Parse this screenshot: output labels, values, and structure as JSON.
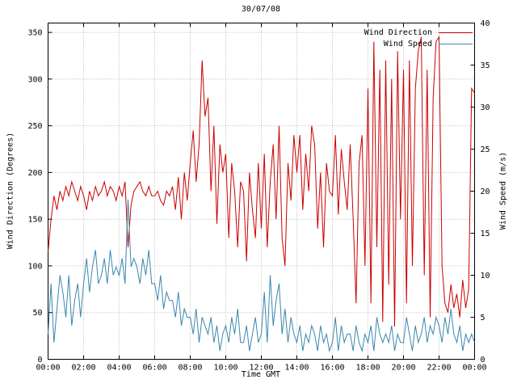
{
  "chart_data": {
    "type": "line",
    "title": "30/07/08",
    "xlabel": "Time GMT",
    "ylabel_left": "Wind Direction (Degrees)",
    "ylabel_right": "Wind Speed (m/s)",
    "grid": true,
    "legend_position": "top-right",
    "x_tick_labels": [
      "00:00",
      "02:00",
      "04:00",
      "06:00",
      "08:00",
      "10:00",
      "12:00",
      "14:00",
      "16:00",
      "18:00",
      "20:00",
      "22:00",
      "00:00"
    ],
    "y_left_ticks": [
      0,
      50,
      100,
      150,
      200,
      250,
      300,
      350
    ],
    "y_right_ticks": [
      0,
      5,
      10,
      15,
      20,
      25,
      30,
      35,
      40
    ],
    "y_left_range": [
      0,
      360
    ],
    "y_right_range": [
      0,
      40
    ],
    "x_range_minutes": [
      0,
      1440
    ],
    "colors": {
      "wind_direction": "#cc0000",
      "wind_speed": "#3a87ad",
      "grid": "#b4b4b4",
      "border": "#000000"
    },
    "series": [
      {
        "name": "Wind Direction",
        "axis": "left",
        "color_key": "wind_direction",
        "step_minutes": 10,
        "values": [
          115,
          150,
          175,
          160,
          180,
          170,
          185,
          175,
          190,
          180,
          170,
          185,
          175,
          160,
          180,
          170,
          185,
          175,
          180,
          190,
          175,
          185,
          180,
          170,
          185,
          175,
          190,
          120,
          165,
          180,
          185,
          190,
          180,
          175,
          185,
          175,
          175,
          180,
          170,
          165,
          180,
          175,
          185,
          160,
          195,
          150,
          200,
          170,
          210,
          245,
          190,
          230,
          320,
          260,
          280,
          180,
          250,
          145,
          230,
          200,
          220,
          130,
          210,
          180,
          120,
          190,
          180,
          105,
          200,
          160,
          130,
          210,
          140,
          220,
          120,
          190,
          230,
          150,
          250,
          130,
          100,
          210,
          170,
          240,
          200,
          240,
          160,
          220,
          180,
          250,
          230,
          140,
          200,
          120,
          210,
          180,
          175,
          240,
          155,
          225,
          190,
          160,
          230,
          150,
          60,
          210,
          240,
          100,
          290,
          60,
          340,
          120,
          310,
          40,
          320,
          80,
          300,
          35,
          330,
          150,
          310,
          60,
          320,
          100,
          290,
          330,
          345,
          90,
          310,
          45,
          280,
          340,
          345,
          100,
          60,
          50,
          80,
          55,
          70,
          45,
          85,
          55,
          75,
          290,
          285
        ]
      },
      {
        "name": "Wind Speed",
        "axis": "right",
        "color_key": "wind_speed",
        "step_minutes": 10,
        "values": [
          3,
          9,
          2,
          6,
          10,
          8,
          5,
          10,
          4,
          7,
          9,
          5,
          9,
          12,
          8,
          11,
          13,
          9,
          10,
          12,
          9,
          13,
          10,
          11,
          10,
          12,
          9,
          19,
          11,
          12,
          11,
          9,
          12,
          10,
          13,
          9,
          9,
          7,
          10,
          6,
          8,
          7,
          7,
          5,
          8,
          4,
          6,
          5,
          5,
          3,
          6,
          2,
          5,
          4,
          3,
          5,
          2,
          4,
          1,
          3,
          4,
          2,
          5,
          3,
          6,
          2,
          2,
          4,
          1,
          3,
          5,
          2,
          3,
          8,
          2,
          10,
          4,
          7,
          9,
          3,
          6,
          2,
          5,
          3,
          2,
          4,
          1,
          3,
          2,
          4,
          3,
          1,
          4,
          2,
          3,
          1,
          2,
          5,
          1,
          4,
          2,
          3,
          3,
          1,
          4,
          2,
          1,
          3,
          2,
          4,
          1,
          5,
          3,
          2,
          3,
          2,
          4,
          1,
          3,
          2,
          2,
          5,
          3,
          1,
          4,
          2,
          3,
          5,
          2,
          4,
          3,
          5,
          4,
          2,
          5,
          3,
          6,
          3,
          2,
          4,
          1,
          3,
          2,
          3,
          2
        ]
      }
    ]
  }
}
